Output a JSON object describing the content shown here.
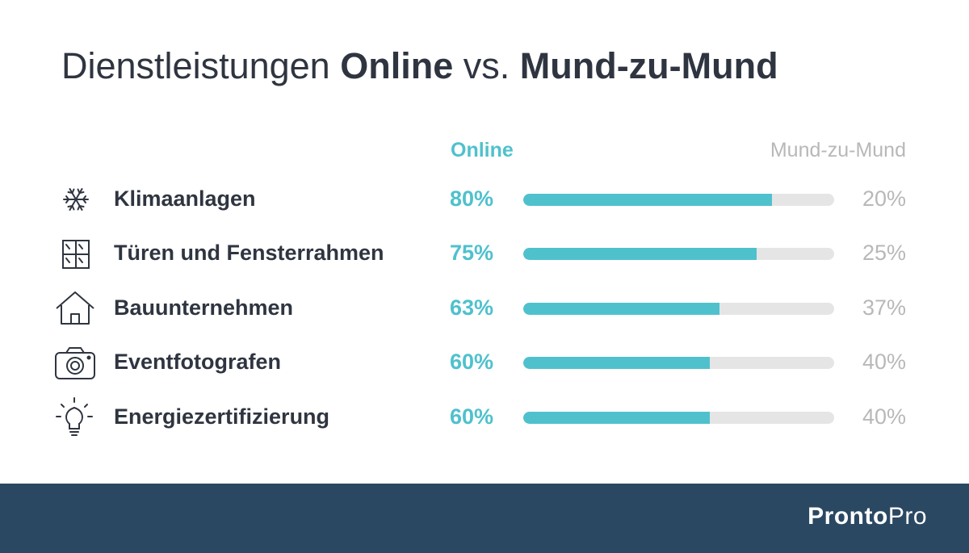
{
  "title": {
    "part1": "Dienstleistungen ",
    "part2": "Online",
    "part3": " vs. ",
    "part4": "Mund-zu-Mund"
  },
  "chart_data": {
    "type": "bar",
    "title": "Dienstleistungen Online vs. Mund-zu-Mund",
    "column_headers": {
      "online": "Online",
      "word_of_mouth": "Mund-zu-Mund"
    },
    "categories": [
      "Klimaanlagen",
      "Türen und Fensterrahmen",
      "Bauunternehmen",
      "Eventfotografen",
      "Energiezertifizierung"
    ],
    "series": [
      {
        "name": "Online",
        "values": [
          80,
          75,
          63,
          60,
          60
        ]
      },
      {
        "name": "Mund-zu-Mund",
        "values": [
          20,
          25,
          37,
          40,
          40
        ]
      }
    ],
    "ylim": [
      0,
      100
    ],
    "value_labels_online": [
      "80%",
      "75%",
      "63%",
      "60%",
      "60%"
    ],
    "value_labels_wom": [
      "20%",
      "25%",
      "37%",
      "40%",
      "40%"
    ],
    "icons": [
      "snowflake-icon",
      "window-icon",
      "house-icon",
      "camera-icon",
      "lightbulb-icon"
    ],
    "colors": {
      "online": "#4fc1cd",
      "word_of_mouth_track": "#e5e5e5",
      "text_muted": "#b8b8b8"
    }
  },
  "footer": {
    "brand_part1": "Pronto",
    "brand_part2": "Pro",
    "background": "#2a4862"
  }
}
